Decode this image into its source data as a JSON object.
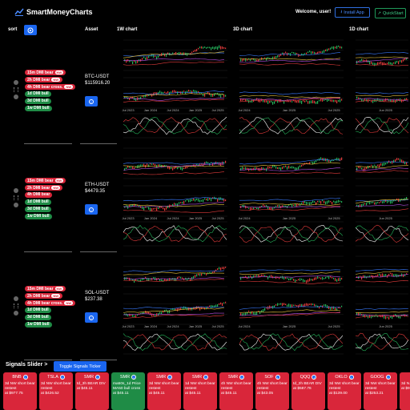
{
  "app": {
    "title": "SmartMoneyCharts",
    "welcome": "Welcome, user!",
    "install": "Install App",
    "quickstart": "QuickStart"
  },
  "headers": {
    "sort": "sort",
    "asset": "Asset",
    "c1": "1W chart",
    "c2": "3D chart",
    "c3": "1D chart"
  },
  "rows": [
    {
      "symbol": "BTC-USDT",
      "price": "$115916.20",
      "tags": [
        {
          "text": "15m DMI bear",
          "pill": "NW",
          "kind": "bear"
        },
        {
          "text": "2h DMI bear",
          "pill": "NW",
          "kind": "bear"
        },
        {
          "text": "4h DMI bear cross.",
          "pill": "NW",
          "kind": "bear"
        },
        {
          "text": "1d DMI bull",
          "pill": "",
          "kind": "bull"
        },
        {
          "text": "3d DMI bull",
          "pill": "",
          "kind": "bull"
        },
        {
          "text": "1w DMI bull",
          "pill": "",
          "kind": "bull"
        }
      ]
    },
    {
      "symbol": "ETH-USDT",
      "price": "$4479.35",
      "tags": [
        {
          "text": "15m DMI bear",
          "pill": "NW",
          "kind": "bear"
        },
        {
          "text": "2h DMI bear",
          "pill": "NW",
          "kind": "bear"
        },
        {
          "text": "4h DMI bear",
          "pill": "",
          "kind": "bear"
        },
        {
          "text": "1d DMI bull",
          "pill": "",
          "kind": "bull"
        },
        {
          "text": "3d DMI bull",
          "pill": "",
          "kind": "bull"
        },
        {
          "text": "1w DMI bull",
          "pill": "",
          "kind": "bull"
        }
      ]
    },
    {
      "symbol": "SOL-USDT",
      "price": "$237.38",
      "tags": [
        {
          "text": "15m DMI bear",
          "pill": "NW",
          "kind": "bear"
        },
        {
          "text": "2h DMI bear",
          "pill": "NW",
          "kind": "bear"
        },
        {
          "text": "4h DMI bear cross.",
          "pill": "NW",
          "kind": "bear"
        },
        {
          "text": "1d DMI bull",
          "pill": "",
          "kind": "bull"
        },
        {
          "text": "3d DMI bull",
          "pill": "",
          "kind": "bull"
        },
        {
          "text": "1w DMI bull",
          "pill": "",
          "kind": "bull"
        }
      ]
    }
  ],
  "chart_labels": {
    "w": [
      "Jul 2023",
      "Jan 2024",
      "Jul 2024",
      "Jan 2025",
      "Jul 2025"
    ],
    "d3": [
      "Jul 2024",
      "Jan 2025",
      "Jul 2025"
    ],
    "d1": [
      "Jun 2025"
    ]
  },
  "slider": {
    "title": "Signals Slider >",
    "toggle": "Toggle Signals Ticker"
  },
  "cards": [
    {
      "sym": "BNB",
      "text": "3d NW short bear restest",
      "price": "at $977.75",
      "kind": "red"
    },
    {
      "sym": "TSLA",
      "text": "3d NW short bear restest",
      "price": "at $426.52",
      "kind": "red"
    },
    {
      "sym": "SMR",
      "text": "td_3h BEAR DIV",
      "price": "at $45.11",
      "kind": "red"
    },
    {
      "sym": "SMR",
      "text": "ma50s_1d Price MA50 bull cross",
      "price": "at $45.11",
      "kind": "green"
    },
    {
      "sym": "SMR",
      "text": "3d NW short bear restest",
      "price": "at $45.11",
      "kind": "red"
    },
    {
      "sym": "SMR",
      "text": "1d NW short bear restest",
      "price": "at $45.11",
      "kind": "red"
    },
    {
      "sym": "SMR",
      "text": "4h NW short bear restest",
      "price": "at $45.11",
      "kind": "red"
    },
    {
      "sym": "SOF",
      "text": "4h NW short bear restest",
      "price": "at $43.05",
      "kind": "red"
    },
    {
      "sym": "QQQ",
      "text": "td_2h BEAR DIV",
      "price": "at $587.76",
      "kind": "red"
    },
    {
      "sym": "OKLO",
      "text": "3d NW short bear restest",
      "price": "at $139.00",
      "kind": "red"
    },
    {
      "sym": "GOOG",
      "text": "3d NW short bear restest",
      "price": "at $253.21",
      "kind": "red"
    },
    {
      "sym": "BN",
      "text": "3d N...",
      "price": "at $9...",
      "kind": "red"
    }
  ]
}
